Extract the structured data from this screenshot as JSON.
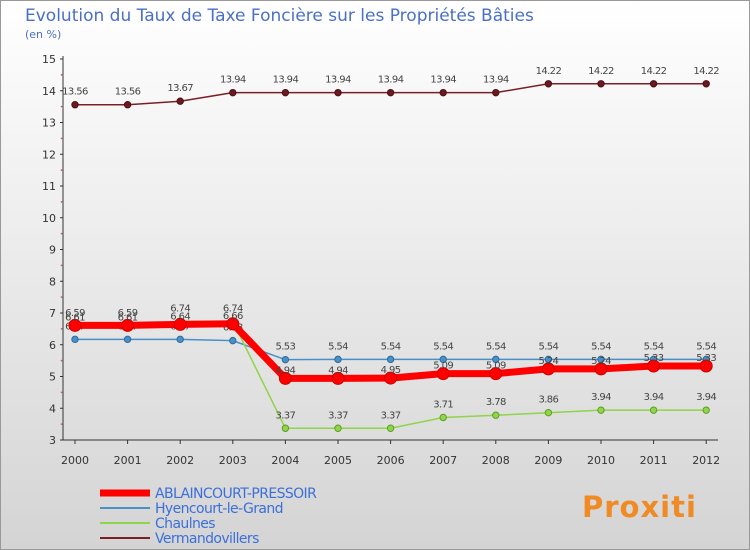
{
  "chart_data": {
    "type": "line",
    "title": "Evolution du Taux de Taxe Foncière sur les Propriétés Bâties",
    "subtitle": "(en %)",
    "xlabel": "",
    "ylabel": "",
    "ylim": [
      3,
      15
    ],
    "yticks": [
      "3",
      "4",
      "5",
      "6",
      "7",
      "8",
      "9",
      "10",
      "11",
      "12",
      "13",
      "14",
      "15"
    ],
    "categories": [
      "2000",
      "2001",
      "2002",
      "2003",
      "2004",
      "2005",
      "2006",
      "2007",
      "2008",
      "2009",
      "2010",
      "2011",
      "2012"
    ],
    "grid": false,
    "legend_position": "bottom-left",
    "series": [
      {
        "name": "ABLAINCOURT-PRESSOIR",
        "color": "#ff0000",
        "values": [
          6.61,
          6.61,
          6.64,
          6.66,
          4.94,
          4.94,
          4.95,
          5.09,
          5.09,
          5.24,
          5.24,
          5.33,
          5.33
        ],
        "labels": [
          "6.61",
          "6.61",
          "6.64",
          "6.66",
          "4.94",
          "4.94",
          "4.95",
          "5.09",
          "5.09",
          "5.24",
          "5.24",
          "5.33",
          "5.33"
        ]
      },
      {
        "name": "Hyencourt-le-Grand",
        "color": "#4a90c8",
        "values": [
          6.17,
          6.17,
          6.17,
          6.13,
          5.53,
          5.54,
          5.54,
          5.54,
          5.54,
          5.54,
          5.54,
          5.54,
          5.54
        ],
        "labels": [
          "6.17",
          "6.17",
          "6.17",
          "6.13",
          "5.53",
          "5.54",
          "5.54",
          "5.54",
          "5.54",
          "5.54",
          "5.54",
          "5.54",
          "5.54"
        ]
      },
      {
        "name": "Chaulnes",
        "color": "#8fd44a",
        "values": [
          6.59,
          6.59,
          6.74,
          6.74,
          3.37,
          3.37,
          3.37,
          3.71,
          3.78,
          3.86,
          3.94,
          3.94,
          3.94
        ],
        "labels": [
          "6.59",
          "6.59",
          "6.74",
          "6.74",
          "3.37",
          "3.37",
          "3.37",
          "3.71",
          "3.78",
          "3.86",
          "3.94",
          "3.94",
          "3.94"
        ]
      },
      {
        "name": "Vermandovillers",
        "color": "#7a1f26",
        "values": [
          13.56,
          13.56,
          13.67,
          13.94,
          13.94,
          13.94,
          13.94,
          13.94,
          13.94,
          14.22,
          14.22,
          14.22,
          14.22
        ],
        "labels": [
          "13.56",
          "13.56",
          "13.67",
          "13.94",
          "13.94",
          "13.94",
          "13.94",
          "13.94",
          "13.94",
          "14.22",
          "14.22",
          "14.22",
          "14.22"
        ]
      }
    ]
  },
  "logo": {
    "text": "Proxiti"
  }
}
